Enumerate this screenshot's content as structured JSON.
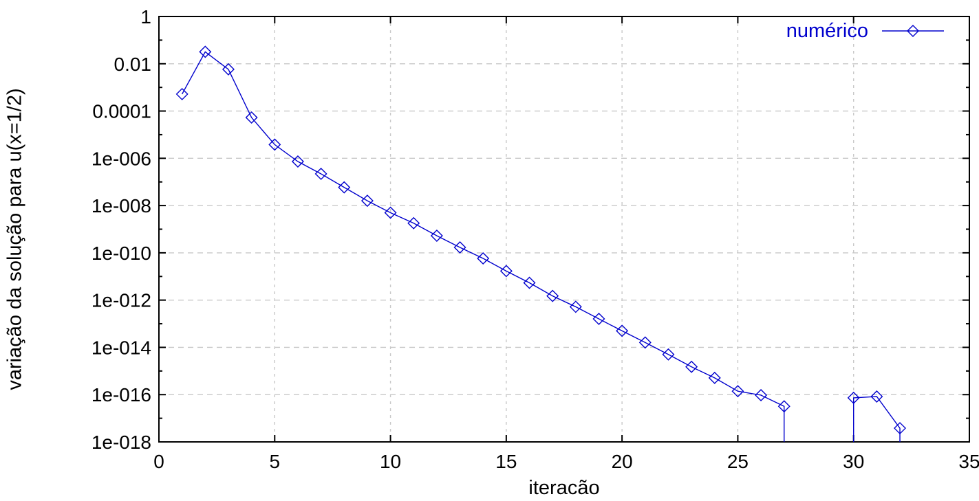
{
  "theme": {
    "background": "#ffffff",
    "axis_color": "#000000",
    "text_color": "#000000",
    "grid_color": "#c8c8c8",
    "series_color": "#0000cd"
  },
  "chart_data": {
    "type": "line",
    "title": "",
    "xlabel": "iteracão",
    "ylabel": "variação da solução para u(x=1/2)",
    "grid": true,
    "x_axis": {
      "min": 0,
      "max": 35,
      "tick_values": [
        0,
        5,
        10,
        15,
        20,
        25,
        30,
        35
      ],
      "tick_labels": [
        "0",
        "5",
        "10",
        "15",
        "20",
        "25",
        "30",
        "35"
      ]
    },
    "y_axis": {
      "scale": "log10",
      "min": 1e-18,
      "max": 1,
      "tick_values": [
        1,
        0.01,
        0.0001,
        1e-06,
        1e-08,
        1e-10,
        1e-12,
        1e-14,
        1e-16,
        1e-18
      ],
      "tick_labels": [
        "1",
        "0.01",
        "0.0001",
        "1e-006",
        "1e-008",
        "1e-010",
        "1e-012",
        "1e-014",
        "1e-016",
        "1e-018"
      ],
      "minor_tick_values": [
        0.1,
        0.001,
        1e-05,
        1e-07,
        1e-09,
        1e-11,
        1e-13,
        1e-15,
        1e-17
      ]
    },
    "legend": {
      "position": "top-right-inside",
      "entries": [
        {
          "label": "numérico",
          "color": "#0000cd",
          "line": "solid",
          "marker": "open-diamond"
        }
      ]
    },
    "series": [
      {
        "name": "numérico",
        "color": "#0000cd",
        "marker": "open-diamond",
        "segments": [
          {
            "drop_start": false,
            "drop_end": true,
            "points": [
              [
                1,
                0.00052
              ],
              [
                2,
                0.032
              ],
              [
                3,
                0.0058
              ],
              [
                4,
                5.3e-05
              ],
              [
                5,
                3.8e-06
              ],
              [
                6,
                7.3e-07
              ],
              [
                7,
                2.2e-07
              ],
              [
                8,
                5.9e-08
              ],
              [
                9,
                1.6e-08
              ],
              [
                10,
                5e-09
              ],
              [
                11,
                1.8e-09
              ],
              [
                12,
                5.3e-10
              ],
              [
                13,
                1.7e-10
              ],
              [
                14,
                5.8e-11
              ],
              [
                15,
                1.7e-11
              ],
              [
                16,
                5.4e-12
              ],
              [
                17,
                1.5e-12
              ],
              [
                18,
                5.2e-13
              ],
              [
                19,
                1.6e-13
              ],
              [
                20,
                5e-14
              ],
              [
                21,
                1.6e-14
              ],
              [
                22,
                5e-15
              ],
              [
                23,
                1.5e-15
              ],
              [
                24,
                5.1e-16
              ],
              [
                25,
                1.4e-16
              ],
              [
                26,
                9.5e-17
              ],
              [
                27,
                3.2e-17
              ]
            ]
          },
          {
            "drop_start": true,
            "drop_end": true,
            "points": [
              [
                30,
                7.3e-17
              ],
              [
                31,
                8.3e-17
              ],
              [
                32,
                3.8e-18
              ]
            ]
          }
        ]
      }
    ]
  }
}
